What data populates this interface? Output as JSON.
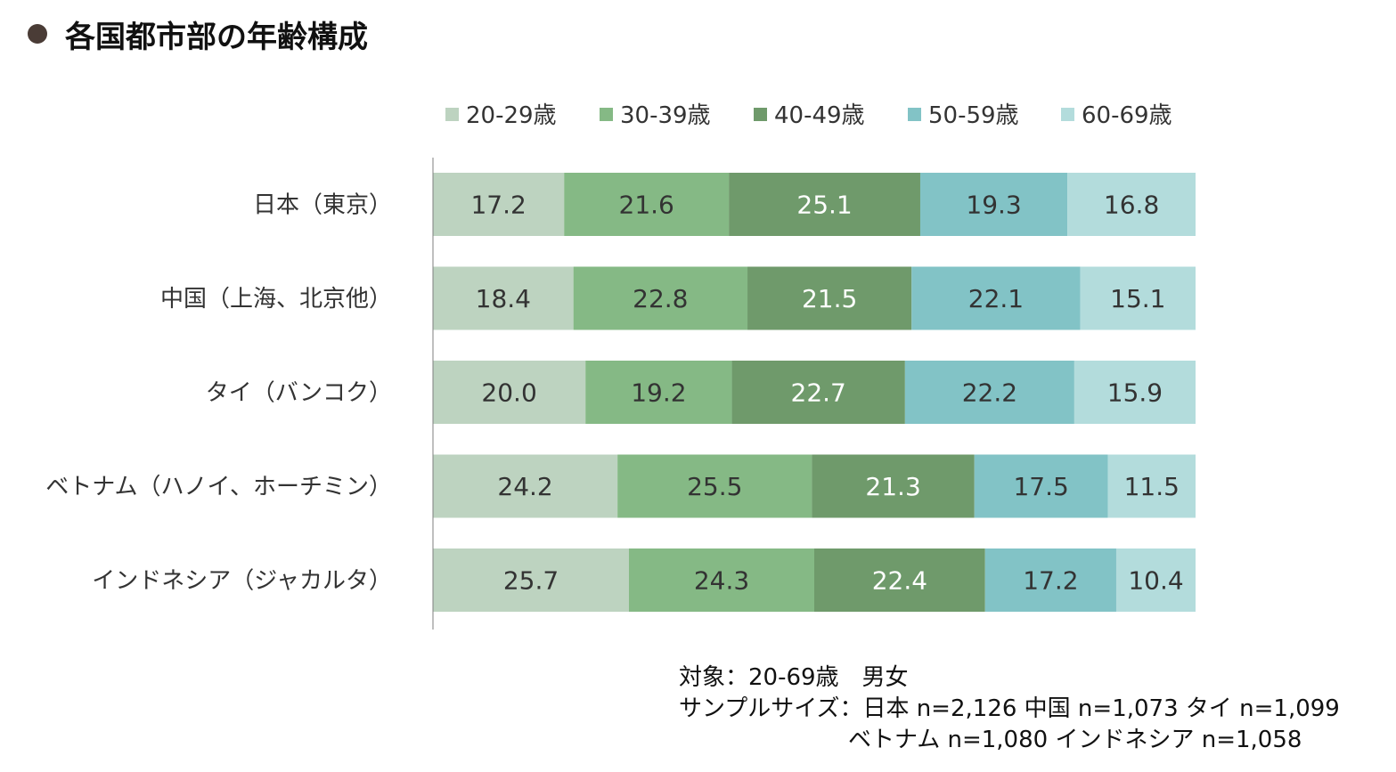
{
  "chart_data": {
    "type": "bar",
    "orientation": "horizontal",
    "stacked": true,
    "title": "各国都市部の年齢構成",
    "categories": [
      "日本（東京）",
      "中国（上海、北京他）",
      "タイ（バンコク）",
      "ベトナム（ハノイ、ホーチミン）",
      "インドネシア（ジャカルタ）"
    ],
    "series": [
      {
        "name": "20-29歳",
        "color": "#bdd3c0",
        "values": [
          17.2,
          18.4,
          20.0,
          24.2,
          25.7
        ]
      },
      {
        "name": "30-39歳",
        "color": "#85b985",
        "values": [
          21.6,
          22.8,
          19.2,
          25.5,
          24.3
        ]
      },
      {
        "name": "40-49歳",
        "color": "#6f9a6b",
        "values": [
          25.1,
          21.5,
          22.7,
          21.3,
          22.4
        ]
      },
      {
        "name": "50-59歳",
        "color": "#82c3c6",
        "values": [
          19.3,
          22.1,
          22.2,
          17.5,
          17.2
        ]
      },
      {
        "name": "60-69歳",
        "color": "#b3dcdc",
        "values": [
          16.8,
          15.1,
          15.9,
          11.5,
          10.4
        ]
      }
    ],
    "value_labels": [
      [
        "17.2",
        "18.4",
        "20.0",
        "24.2",
        "25.7"
      ],
      [
        "21.6",
        "22.8",
        "19.2",
        "25.5",
        "24.3"
      ],
      [
        "25.1",
        "21.5",
        "22.7",
        "21.3",
        "22.4"
      ],
      [
        "19.3",
        "22.1",
        "22.2",
        "17.5",
        "17.2"
      ],
      [
        "16.8",
        "15.1",
        "15.9",
        "11.5",
        "10.4"
      ]
    ],
    "label_colors": [
      "#333333",
      "#333333",
      "#ffffff",
      "#333333",
      "#333333"
    ],
    "xlim": [
      0,
      100
    ],
    "legend_position": "top",
    "grid": false
  },
  "notes": {
    "line1": "対象：20-69歳　男女",
    "line2": "サンプルサイズ：日本 n=2,126 中国 n=1,073 タイ n=1,099",
    "line3": "ベトナム n=1,080 インドネシア n=1,058"
  }
}
